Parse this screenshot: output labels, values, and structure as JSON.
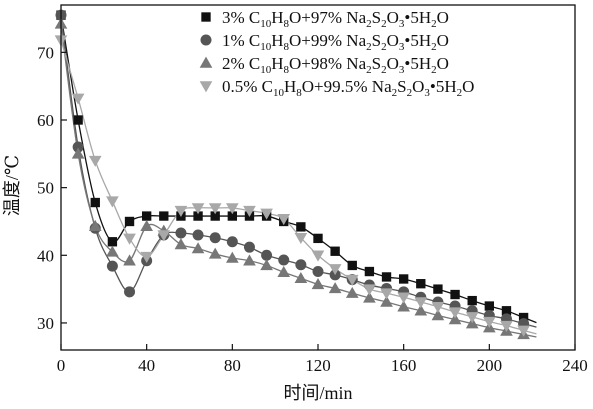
{
  "chart_data": {
    "type": "line",
    "title": "",
    "xlabel": "时间/min",
    "ylabel": "温度/℃",
    "xlim": [
      0,
      240
    ],
    "ylim": [
      26,
      77
    ],
    "xticks": [
      "0",
      "40",
      "80",
      "120",
      "160",
      "200",
      "240"
    ],
    "yticks": [
      "30",
      "40",
      "50",
      "60",
      "70"
    ],
    "grid": false,
    "legend_position": "top-right",
    "series": [
      {
        "name": "3% C10H8O+97% Na2S2O3•5H2O",
        "legend": [
          {
            "t": "3% C"
          },
          {
            "t": "10",
            "sub": true
          },
          {
            "t": "H"
          },
          {
            "t": "8",
            "sub": true
          },
          {
            "t": "O+97% Na"
          },
          {
            "t": "2",
            "sub": true
          },
          {
            "t": "S"
          },
          {
            "t": "2",
            "sub": true
          },
          {
            "t": "O"
          },
          {
            "t": "3",
            "sub": true
          },
          {
            "t": "•5H"
          },
          {
            "t": "2",
            "sub": true
          },
          {
            "t": "O"
          }
        ],
        "marker": "square",
        "color": "#111111",
        "x": [
          0,
          8,
          16,
          24,
          32,
          40,
          48,
          56,
          64,
          72,
          80,
          88,
          96,
          104,
          112,
          120,
          128,
          136,
          144,
          152,
          160,
          168,
          176,
          184,
          192,
          200,
          208,
          216
        ],
        "y": [
          75.5,
          60.0,
          47.8,
          42.0,
          45.0,
          45.8,
          45.8,
          45.8,
          45.8,
          45.8,
          45.8,
          45.8,
          45.8,
          45.0,
          44.2,
          42.5,
          40.6,
          38.5,
          37.6,
          36.8,
          36.5,
          35.8,
          35.0,
          34.2,
          33.3,
          32.5,
          31.8,
          30.8
        ]
      },
      {
        "name": "1% C10H8O+99% Na2S2O3•5H2O",
        "legend": [
          {
            "t": "1% C"
          },
          {
            "t": "10",
            "sub": true
          },
          {
            "t": "H"
          },
          {
            "t": "8",
            "sub": true
          },
          {
            "t": "O+99% Na"
          },
          {
            "t": "2",
            "sub": true
          },
          {
            "t": "S"
          },
          {
            "t": "2",
            "sub": true
          },
          {
            "t": "O"
          },
          {
            "t": "3",
            "sub": true
          },
          {
            "t": "•5H"
          },
          {
            "t": "2",
            "sub": true
          },
          {
            "t": "O"
          }
        ],
        "marker": "circle",
        "color": "#555555",
        "x": [
          0,
          8,
          16,
          24,
          32,
          40,
          48,
          56,
          64,
          72,
          80,
          88,
          96,
          104,
          112,
          120,
          128,
          136,
          144,
          152,
          160,
          168,
          176,
          184,
          192,
          200,
          208,
          216
        ],
        "y": [
          75.5,
          56.0,
          44.0,
          38.4,
          34.6,
          39.2,
          43.0,
          43.3,
          43.0,
          42.6,
          42.0,
          41.2,
          40.0,
          39.3,
          38.6,
          37.6,
          37.1,
          36.4,
          35.6,
          35.1,
          34.6,
          33.8,
          33.1,
          32.5,
          31.8,
          31.1,
          30.6,
          29.9
        ]
      },
      {
        "name": "2% C10H8O+98% Na2S2O3•5H2O",
        "legend": [
          {
            "t": "2% C"
          },
          {
            "t": "10",
            "sub": true
          },
          {
            "t": "H"
          },
          {
            "t": "8",
            "sub": true
          },
          {
            "t": "O+98% Na"
          },
          {
            "t": "2",
            "sub": true
          },
          {
            "t": "S"
          },
          {
            "t": "2",
            "sub": true
          },
          {
            "t": "O"
          },
          {
            "t": "3",
            "sub": true
          },
          {
            "t": "•5H"
          },
          {
            "t": "2",
            "sub": true
          },
          {
            "t": "O"
          }
        ],
        "marker": "triangle-up",
        "color": "#777777",
        "x": [
          0,
          8,
          16,
          24,
          32,
          40,
          48,
          56,
          64,
          72,
          80,
          88,
          96,
          104,
          112,
          120,
          128,
          136,
          144,
          152,
          160,
          168,
          176,
          184,
          192,
          200,
          208,
          216
        ],
        "y": [
          74.2,
          55.0,
          44.3,
          40.5,
          39.2,
          44.3,
          43.6,
          41.6,
          41.0,
          40.2,
          39.6,
          39.2,
          38.5,
          37.5,
          36.6,
          35.7,
          35.1,
          34.4,
          33.7,
          33.1,
          32.4,
          31.8,
          31.1,
          30.5,
          29.9,
          29.3,
          28.8,
          28.3
        ]
      },
      {
        "name": "0.5% C10H8O+99.5% Na2S2O3•5H2O",
        "legend": [
          {
            "t": "0.5% C"
          },
          {
            "t": "10",
            "sub": true
          },
          {
            "t": "H"
          },
          {
            "t": "8",
            "sub": true
          },
          {
            "t": "O+99.5% Na"
          },
          {
            "t": "2",
            "sub": true
          },
          {
            "t": "S"
          },
          {
            "t": "2",
            "sub": true
          },
          {
            "t": "O"
          },
          {
            "t": "3",
            "sub": true
          },
          {
            "t": "•5H"
          },
          {
            "t": "2",
            "sub": true
          },
          {
            "t": "O"
          }
        ],
        "marker": "triangle-down",
        "color": "#a8a8a8",
        "x": [
          0,
          8,
          16,
          24,
          32,
          40,
          48,
          56,
          64,
          72,
          80,
          88,
          96,
          104,
          112,
          120,
          128,
          136,
          144,
          152,
          160,
          168,
          176,
          184,
          192,
          200,
          208,
          216
        ],
        "y": [
          71.8,
          63.2,
          54.0,
          48.0,
          42.5,
          39.8,
          43.0,
          46.6,
          47.0,
          47.0,
          47.0,
          46.6,
          46.2,
          45.4,
          42.6,
          40.0,
          38.0,
          36.4,
          35.0,
          34.4,
          33.8,
          33.1,
          32.4,
          31.6,
          30.9,
          30.2,
          29.6,
          28.9
        ]
      }
    ]
  }
}
